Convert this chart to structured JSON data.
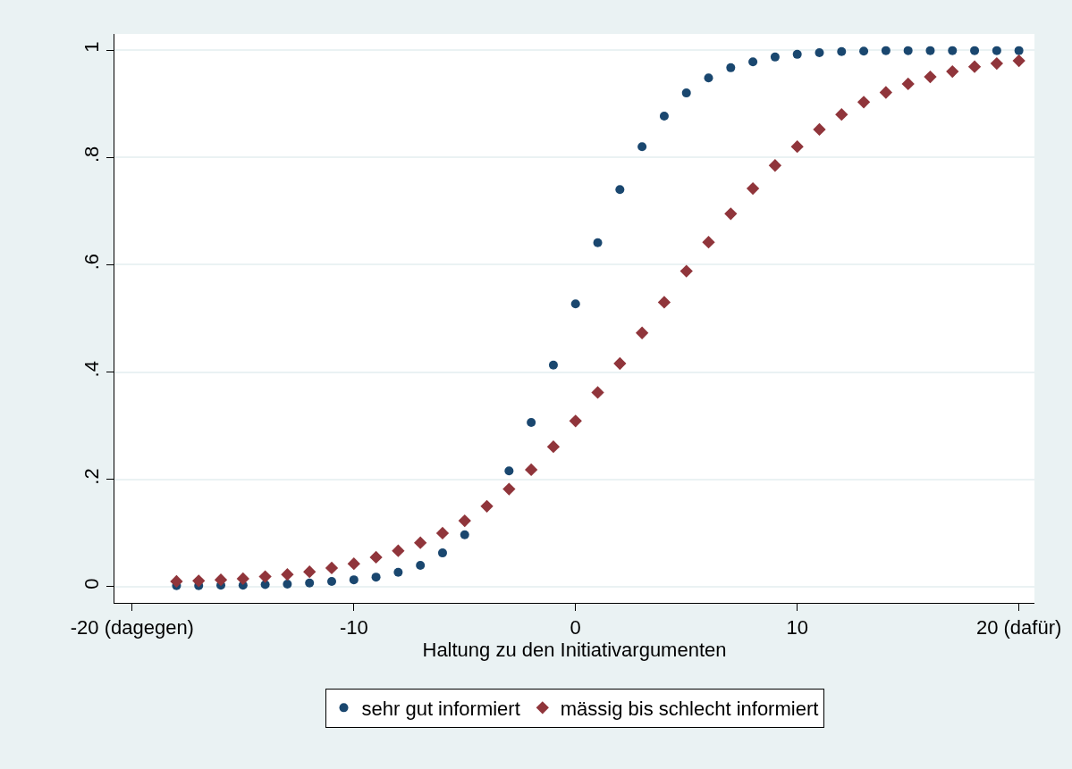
{
  "chart_data": {
    "type": "scatter",
    "xlabel": "Haltung zu den Initiativargumenten",
    "x": [
      -18,
      -17,
      -16,
      -15,
      -14,
      -13,
      -12,
      -11,
      -10,
      -9,
      -8,
      -7,
      -6,
      -5,
      -4,
      -3,
      -2,
      -1,
      0,
      1,
      2,
      3,
      4,
      5,
      6,
      7,
      8,
      9,
      10,
      11,
      12,
      13,
      14,
      15,
      16,
      17,
      18,
      19,
      20
    ],
    "series": [
      {
        "name": "sehr gut informiert",
        "color": "#1a476f",
        "marker": "circle",
        "values": [
          0.002,
          0.002,
          0.003,
          0.003,
          0.004,
          0.005,
          0.007,
          0.01,
          0.013,
          0.018,
          0.027,
          0.04,
          0.063,
          0.097,
          null,
          0.216,
          0.306,
          0.413,
          0.527,
          0.641,
          0.74,
          0.82,
          0.877,
          0.92,
          0.948,
          0.967,
          0.978,
          0.987,
          0.992,
          0.995,
          0.997,
          0.998,
          0.999,
          0.999,
          0.999,
          0.999,
          0.999,
          0.999,
          0.999
        ]
      },
      {
        "name": "mässig bis schlecht informiert",
        "color": "#90353b",
        "marker": "diamond",
        "values": [
          0.01,
          0.011,
          0.013,
          0.015,
          0.019,
          0.023,
          0.028,
          0.035,
          0.043,
          0.055,
          0.067,
          0.082,
          0.1,
          0.123,
          0.15,
          0.182,
          0.218,
          0.261,
          0.309,
          0.362,
          0.416,
          0.473,
          0.53,
          0.588,
          0.642,
          0.695,
          0.742,
          0.785,
          0.82,
          0.852,
          0.88,
          0.903,
          0.921,
          0.937,
          0.95,
          0.96,
          0.969,
          0.975,
          0.98
        ]
      }
    ],
    "xlim": [
      -20.8,
      20.7
    ],
    "xticks": [
      {
        "value": -20,
        "label": "-20 (dagegen)"
      },
      -10,
      0,
      10,
      {
        "value": 20,
        "label": "20 (dafür)"
      }
    ],
    "ylim": [
      -0.03,
      1.03
    ],
    "yticks": [
      0,
      {
        "value": 0.2,
        "label": ".2"
      },
      {
        "value": 0.4,
        "label": ".4"
      },
      {
        "value": 0.6,
        "label": ".6"
      },
      {
        "value": 0.8,
        "label": ".8"
      },
      1
    ],
    "grid": "y",
    "legend": "bottom"
  }
}
